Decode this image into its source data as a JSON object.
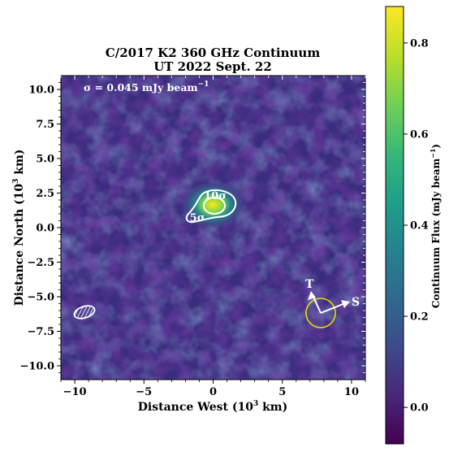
{
  "chart_data": {
    "type": "heatmap",
    "title_line1": "C/2017 K2 360 GHz Continuum",
    "title_line2": "UT 2022 Sept. 22",
    "xlabel": "Distance West (10",
    "xlabel_exp": "3",
    "xlabel_tail": " km)",
    "ylabel": "Distance North (10",
    "ylabel_exp": "3",
    "ylabel_tail": " km)",
    "xlim": [
      -11,
      11
    ],
    "ylim": [
      -11,
      11
    ],
    "x_ticks": [
      -10,
      -5,
      0,
      5,
      10
    ],
    "x_tick_labels": [
      "−10",
      "−5",
      "0",
      "5",
      "10"
    ],
    "y_ticks": [
      10.0,
      7.5,
      5.0,
      2.5,
      0.0,
      -2.5,
      -5.0,
      -7.5,
      -10.0
    ],
    "y_tick_labels": [
      "10.0",
      "7.5",
      "5.0",
      "2.5",
      "0.0",
      "−2.5",
      "−5.0",
      "−7.5",
      "−10.0"
    ],
    "sigma_label": "σ = 0.045 mJy beam",
    "sigma_exp": "−1",
    "colorbar": {
      "label": "Continuum Flux (mJy beam",
      "label_exp": "−1",
      "label_tail": ")",
      "range": [
        -0.08,
        0.88
      ],
      "ticks": [
        0.0,
        0.2,
        0.4,
        0.6,
        0.8
      ],
      "tick_labels": [
        "0.0",
        "0.2",
        "0.4",
        "0.6",
        "0.8"
      ],
      "colormap": "viridis"
    },
    "source_peak": {
      "x": 0.0,
      "y": 0.0,
      "flux_mJy_per_beam": 0.87
    },
    "contours": [
      {
        "label": "5σ",
        "level_mJy_per_beam": 0.225
      },
      {
        "label": "10σ",
        "level_mJy_per_beam": 0.45
      }
    ],
    "beam": {
      "x": -7.5,
      "y": -7.7
    },
    "direction_markers": {
      "center_x": 7.8,
      "center_y": -7.8,
      "sun_label": "S",
      "velocity_label": "T"
    }
  }
}
